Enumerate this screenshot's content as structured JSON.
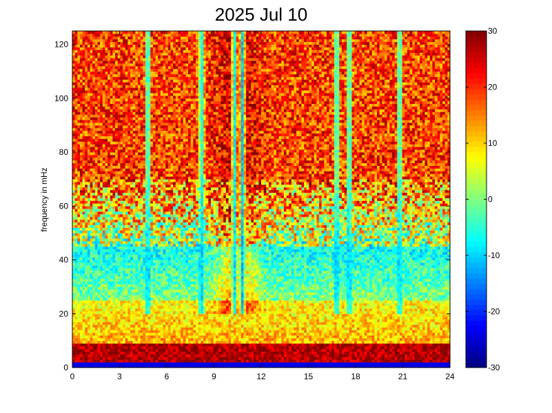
{
  "chart_data": {
    "type": "heatmap",
    "title": "2025 Jul 10",
    "xlabel": "",
    "ylabel": "frequency in mHz",
    "xlim": [
      0,
      24
    ],
    "ylim": [
      0,
      125
    ],
    "x_ticks": [
      0,
      3,
      6,
      9,
      12,
      15,
      18,
      21,
      24
    ],
    "y_ticks": [
      0,
      20,
      40,
      60,
      80,
      100,
      120
    ],
    "colorbar": {
      "range": [
        -30,
        30
      ],
      "ticks": [
        -30,
        -20,
        -10,
        0,
        10,
        20,
        30
      ],
      "colormap": "jet"
    },
    "grid": false,
    "description_of_field": {
      "low_frequency_band": "strong red band near 2-8 mHz across all hours",
      "mid_band": "yellow/cyan 10-40 mHz",
      "high_frequency": "dark red/saturated above ~60 mHz, blue streaks at vertical bands"
    },
    "notable_vertical_bands_hours": [
      4.8,
      8.2,
      10.3,
      10.8,
      16.8,
      17.6,
      20.8
    ],
    "x_cells": 150,
    "y_cells": 125
  },
  "colors": {
    "background": "#ffffff",
    "axis": "#000000"
  }
}
